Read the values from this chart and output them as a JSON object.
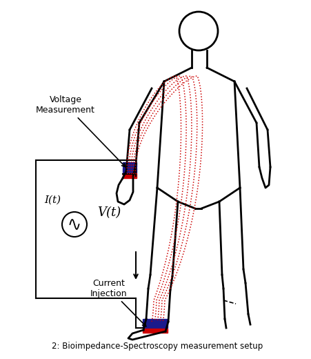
{
  "title": "2: Bioimpedance-Spectroscopy measurement setup",
  "body_color": "#000000",
  "electrode_blue": "#1a1a8c",
  "electrode_red": "#cc0000",
  "current_line_color": "#cc0000",
  "background": "#ffffff",
  "voltage_label": "V(t)",
  "current_label": "I(t)",
  "voltage_measurement_label": "Voltage\nMeasurement",
  "current_injection_label": "Current\nInjection",
  "caption": "2: Bioimpedance-Spectroscopy measurement setup"
}
